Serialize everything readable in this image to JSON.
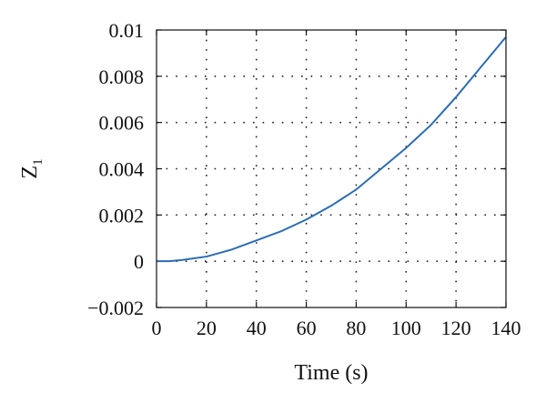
{
  "chart_data": {
    "type": "line",
    "xlabel": "Time (s)",
    "ylabel": {
      "main": "Z",
      "sub": "1"
    },
    "xlim": [
      0,
      140
    ],
    "ylim": [
      -0.002,
      0.01
    ],
    "xticks": [
      0,
      20,
      40,
      60,
      80,
      100,
      120,
      140
    ],
    "yticks": [
      -0.002,
      0,
      0.002,
      0.004,
      0.006,
      0.008,
      0.01
    ],
    "xtick_labels": [
      "0",
      "20",
      "40",
      "60",
      "80",
      "100",
      "120",
      "140"
    ],
    "ytick_labels": [
      "−0.002",
      "0",
      "0.002",
      "0.004",
      "0.006",
      "0.008",
      "0.01"
    ],
    "grid": true,
    "series": [
      {
        "color": "#2b6cb3",
        "x": [
          0,
          5,
          10,
          20,
          30,
          40,
          50,
          60,
          70,
          80,
          90,
          100,
          110,
          120,
          130,
          140
        ],
        "y": [
          0,
          0,
          5e-05,
          0.0002,
          0.0005,
          0.0009,
          0.0013,
          0.0018,
          0.0024,
          0.0031,
          0.004,
          0.0049,
          0.0059,
          0.0071,
          0.0084,
          0.0097
        ]
      }
    ]
  }
}
